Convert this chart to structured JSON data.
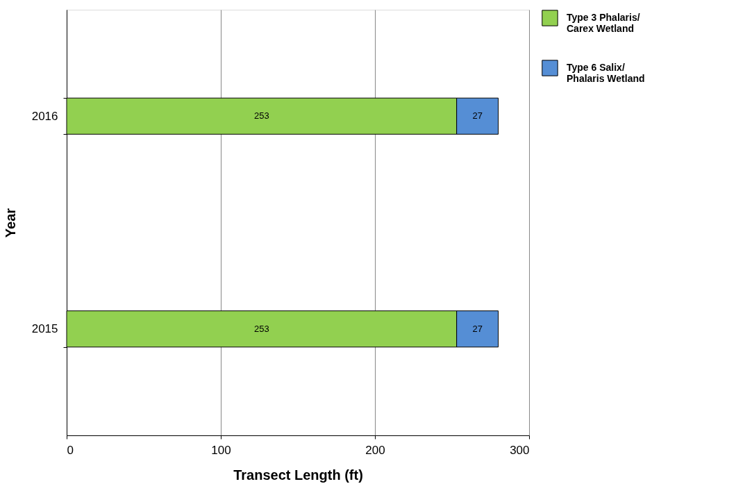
{
  "chart_data": {
    "type": "bar",
    "orientation": "horizontal",
    "stacked": true,
    "xlabel": "Transect Length (ft)",
    "ylabel": "Year",
    "categories": [
      "2016",
      "2015"
    ],
    "series": [
      {
        "name": "Type 3 Phalaris/Carex Wetland",
        "color": "#92d050",
        "values": [
          253,
          253
        ]
      },
      {
        "name": "Type 6 Salix/Phalaris Wetland",
        "color": "#558ed5",
        "values": [
          27,
          27
        ]
      }
    ],
    "xlim": [
      0,
      300
    ],
    "xticks": [
      0,
      100,
      200,
      300
    ],
    "grid": "x",
    "legend": "right",
    "data_labels": true
  }
}
